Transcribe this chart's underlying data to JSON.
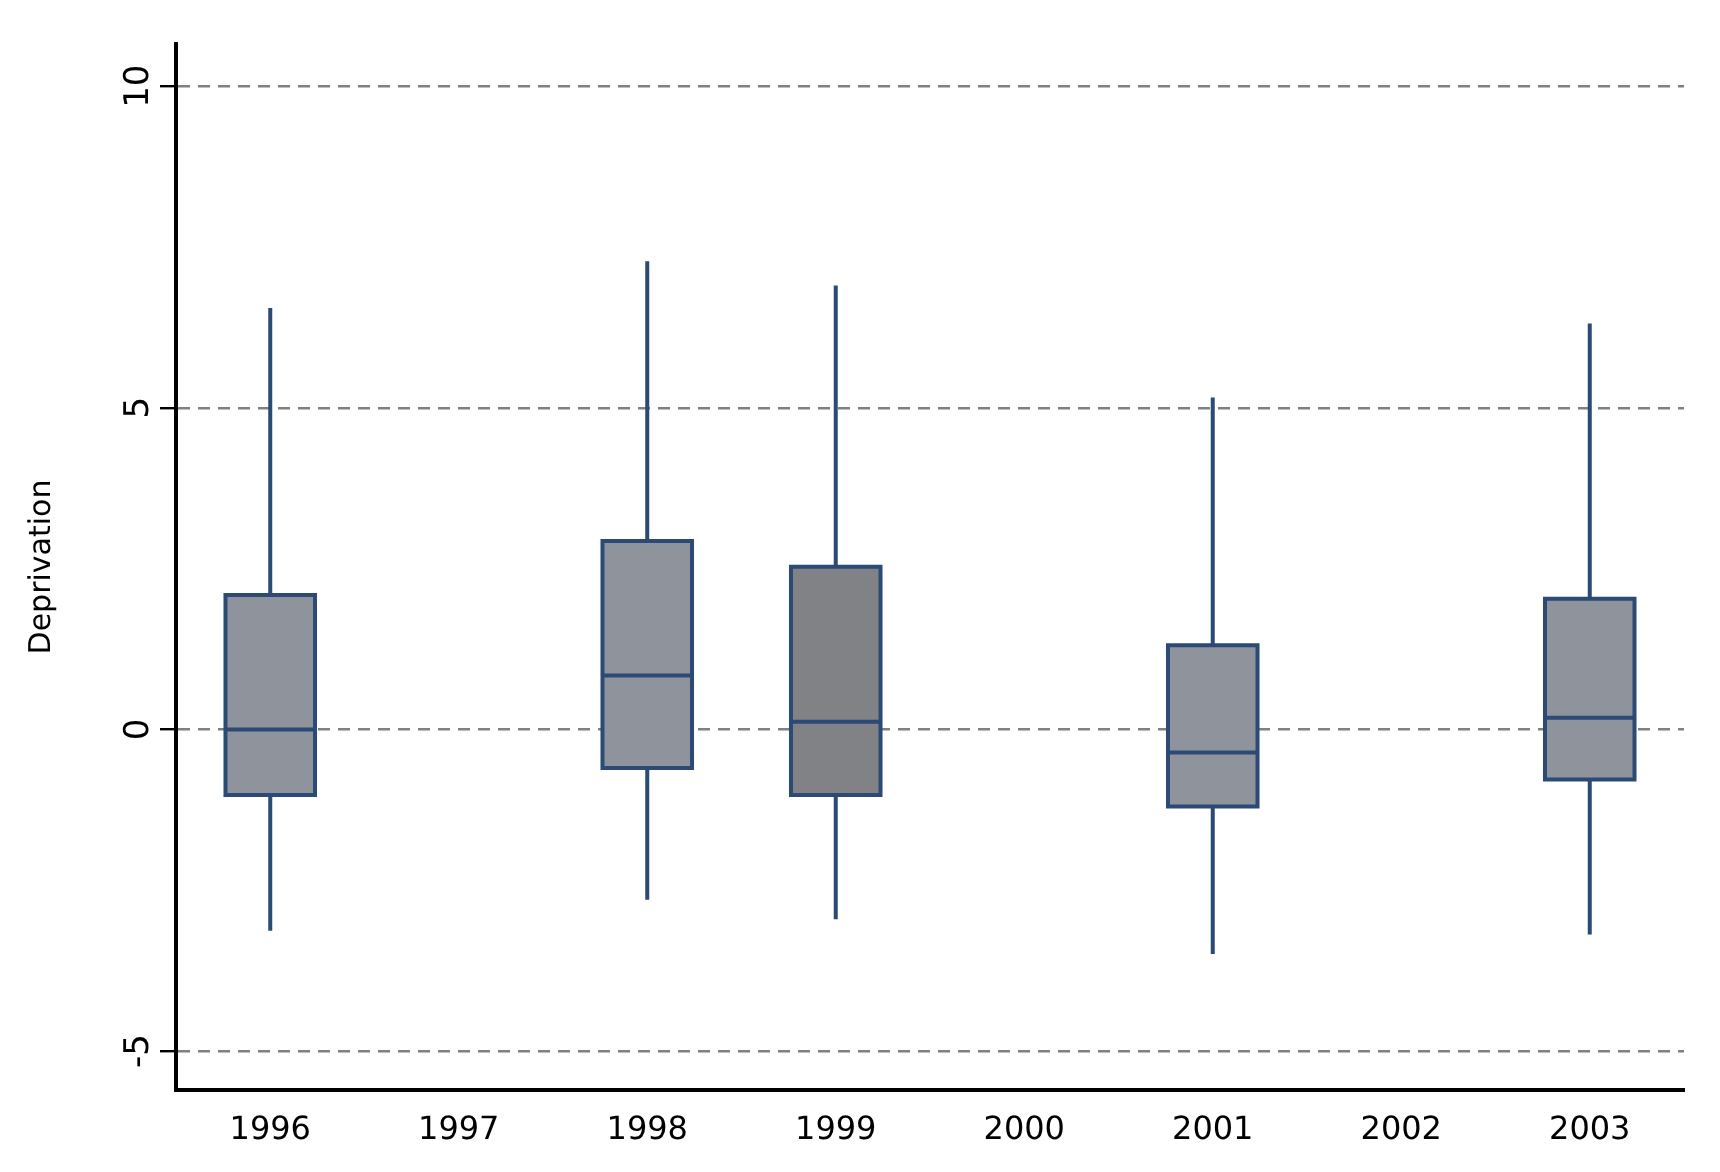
{
  "chart_data": {
    "type": "box",
    "ylabel": "Deprivation",
    "categories": [
      "1996",
      "1997",
      "1998",
      "1999",
      "2000",
      "2001",
      "2002",
      "2003"
    ],
    "boxes": [
      {
        "low": -3.13,
        "q1": -1.02,
        "median": 0,
        "q3": 2.09,
        "high": 6.55
      },
      null,
      {
        "low": -2.65,
        "q1": -0.6,
        "median": 0.84,
        "q3": 2.93,
        "high": 7.28
      },
      {
        "low": -2.95,
        "q1": -1.02,
        "median": 0.12,
        "q3": 2.53,
        "high": 6.9
      },
      null,
      {
        "low": -3.49,
        "q1": -1.2,
        "median": -0.36,
        "q3": 1.31,
        "high": 5.16
      },
      null,
      {
        "low": -3.19,
        "q1": -0.78,
        "median": 0.18,
        "q3": 2.03,
        "high": 6.31
      }
    ],
    "colors": [
      "#8f939c",
      "#8f939c",
      "#8f939c",
      "#818285",
      "#8f939c",
      "#8f939c",
      "#8f939c",
      "#8f939c"
    ],
    "ylim": [
      -5.6,
      10.65
    ],
    "yticks": [
      -5,
      0,
      5,
      10
    ],
    "grid": "y",
    "legend": false
  }
}
